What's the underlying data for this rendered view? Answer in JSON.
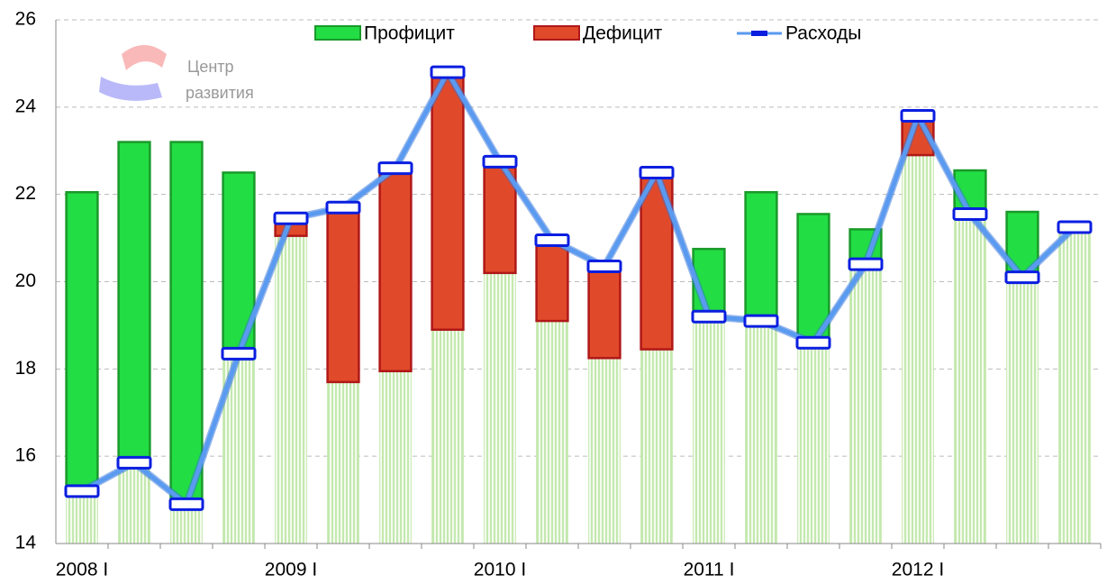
{
  "chart_data": {
    "type": "bar-line",
    "watermark": [
      "Центр",
      "развития"
    ],
    "categories": [
      "2008 I",
      null,
      null,
      null,
      "2009 I",
      null,
      null,
      null,
      "2010 I",
      null,
      null,
      null,
      "2011 I",
      null,
      null,
      null,
      "2012 I",
      null,
      null,
      null
    ],
    "series": [
      {
        "name": "Профицит",
        "color": "#22dd44",
        "values": [
          6.85,
          7.35,
          8.3,
          4.15,
          null,
          null,
          null,
          null,
          null,
          null,
          null,
          null,
          1.55,
          2.95,
          2.95,
          0.8,
          null,
          1.0,
          1.5,
          null
        ]
      },
      {
        "name": "Дефицит",
        "color": "#e04a2a",
        "values": [
          null,
          null,
          null,
          null,
          0.4,
          4.0,
          4.65,
          5.9,
          2.55,
          1.85,
          2.1,
          4.05,
          null,
          null,
          null,
          null,
          0.9,
          null,
          null,
          null
        ]
      },
      {
        "name": "Расходы",
        "color": "#5a9af0",
        "values": [
          15.2,
          15.85,
          14.9,
          18.35,
          21.45,
          21.7,
          22.6,
          24.8,
          22.75,
          20.95,
          20.35,
          22.5,
          19.2,
          19.1,
          18.6,
          20.4,
          23.8,
          21.55,
          20.1,
          21.25
        ]
      }
    ],
    "ylim": [
      14,
      26
    ],
    "yticks": [
      14,
      16,
      18,
      20,
      22,
      24,
      26
    ],
    "grid": true
  }
}
